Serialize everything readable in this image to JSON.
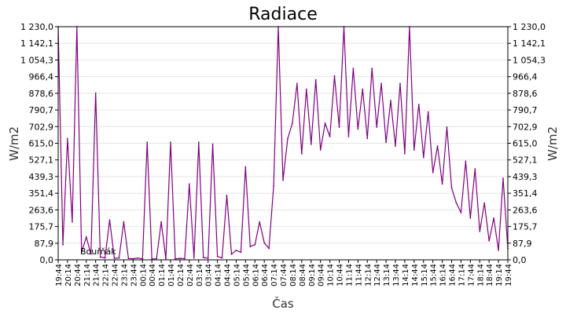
{
  "chart_data": {
    "type": "line",
    "title": "Radiace",
    "xlabel": "Čas",
    "ylabel": "W/m2",
    "ylim": [
      0,
      1230
    ],
    "y_ticks": [
      "0,0",
      "87,9",
      "175,7",
      "263,6",
      "351,4",
      "439,3",
      "527,1",
      "615,0",
      "702,9",
      "790,7",
      "878,6",
      "966,4",
      "1 054,3",
      "1 142,1",
      "1 230,0"
    ],
    "x_ticks": [
      "19:44",
      "20:14",
      "20:44",
      "21:14",
      "21:44",
      "22:14",
      "22:44",
      "23:14",
      "23:44",
      "00:14",
      "00:44",
      "01:14",
      "01:44",
      "02:14",
      "02:44",
      "03:14",
      "03:44",
      "04:14",
      "04:44",
      "05:14",
      "05:44",
      "06:14",
      "06:44",
      "07:14",
      "07:44",
      "08:14",
      "08:44",
      "09:14",
      "09:44",
      "10:14",
      "10:44",
      "11:14",
      "11:44",
      "12:14",
      "12:44",
      "13:14",
      "13:44",
      "14:14",
      "14:44",
      "15:14",
      "15:44",
      "16:14",
      "16:44",
      "17:14",
      "17:44",
      "18:14",
      "18:44",
      "19:14",
      "19:44"
    ],
    "annotation": "Bouřňák",
    "series": [
      {
        "color": "#800080",
        "x": [
          0,
          0.5,
          1,
          1.5,
          2,
          2.5,
          3,
          3.5,
          4,
          4.5,
          5,
          5.5,
          6,
          6.5,
          7,
          7.5,
          8,
          8.5,
          9,
          9.5,
          10,
          10.5,
          11,
          11.5,
          12,
          12.5,
          13,
          13.5,
          14,
          14.5,
          15,
          15.5,
          16,
          16.5,
          17,
          17.5,
          18,
          18.5,
          19,
          19.5,
          20,
          20.5,
          21,
          21.5,
          22,
          22.5,
          23,
          23.5,
          24,
          24.5,
          25,
          25.5,
          26,
          26.5,
          27,
          27.5,
          28,
          28.5,
          29,
          29.5,
          30,
          30.5,
          31,
          31.5,
          32,
          32.5,
          33,
          33.5,
          34,
          34.5,
          35,
          35.5,
          36,
          36.5,
          37,
          37.5,
          38,
          38.5,
          39,
          39.5,
          40,
          40.5,
          41,
          41.5,
          42,
          42.5,
          43,
          43.5,
          44,
          44.5,
          45,
          45.5,
          46,
          46.5,
          47,
          47.5,
          48
        ],
        "y": [
          1230,
          80,
          640,
          200,
          1230,
          40,
          120,
          30,
          880,
          15,
          10,
          210,
          8,
          10,
          200,
          7,
          6,
          10,
          5,
          620,
          5,
          6,
          200,
          5,
          620,
          5,
          8,
          6,
          400,
          10,
          620,
          12,
          8,
          610,
          18,
          10,
          340,
          30,
          50,
          40,
          490,
          70,
          80,
          200,
          90,
          60,
          390,
          1230,
          420,
          640,
          720,
          930,
          560,
          900,
          610,
          950,
          580,
          720,
          650,
          970,
          700,
          1230,
          650,
          1010,
          690,
          900,
          640,
          1010,
          700,
          930,
          620,
          840,
          600,
          930,
          560,
          1230,
          580,
          820,
          540,
          780,
          460,
          600,
          400,
          700,
          380,
          300,
          250,
          520,
          220,
          480,
          150,
          300,
          100,
          220,
          50,
          430,
          60
        ]
      }
    ]
  }
}
